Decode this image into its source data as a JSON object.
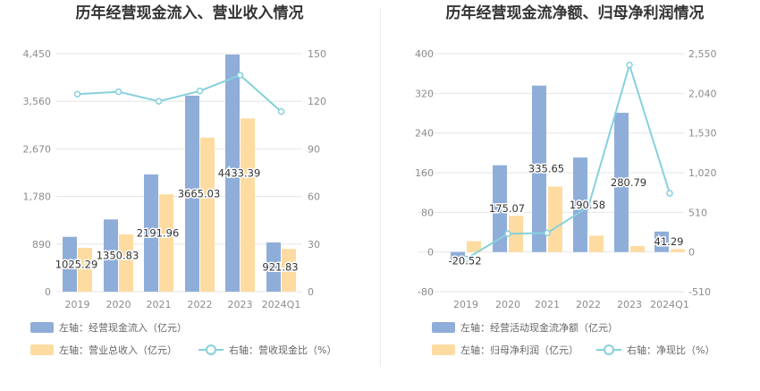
{
  "charts": [
    {
      "title": "历年经营现金流入、营业收入情况",
      "legend": {
        "bar1": "左轴：经营现金流入（亿元）",
        "bar2": "左轴：营业总收入（亿元）",
        "line": "右轴：营收现金比（%）"
      }
    },
    {
      "title": "历年经营现金流净额、归母净利润情况",
      "legend": {
        "bar1": "左轴：经营活动现金流净额（亿元）",
        "bar2": "左轴：归母净利润（亿元）",
        "line": "右轴：净现比（%）"
      }
    }
  ],
  "colors": {
    "bar1": "#8fadd9",
    "bar2": "#fedba1",
    "line": "#86d1dc",
    "grid": "#e6e6e6"
  },
  "chart_data": [
    {
      "type": "bar",
      "title": "历年经营现金流入、营业收入情况",
      "categories": [
        "2019",
        "2020",
        "2021",
        "2022",
        "2023",
        "2024Q1"
      ],
      "left_axis": {
        "ticks": [
          "0",
          "890",
          "1,780",
          "2,670",
          "3,560",
          "4,450"
        ],
        "ylim": [
          0,
          4450
        ]
      },
      "right_axis": {
        "ticks": [
          "0",
          "30",
          "60",
          "90",
          "120",
          "150"
        ],
        "ylim": [
          0,
          150
        ]
      },
      "series": [
        {
          "name": "左轴：经营现金流入（亿元）",
          "axis": "left",
          "values": [
            1025.29,
            1350.83,
            2191.96,
            3665.03,
            4433.39,
            921.83
          ],
          "labels": [
            "1025.29",
            "1350.83",
            "2191.96",
            "3665.03",
            "4433.39",
            "921.83"
          ]
        },
        {
          "name": "左轴：营业总收入（亿元）",
          "axis": "left",
          "values": [
            820,
            1070,
            1820,
            2880,
            3240,
            800
          ]
        },
        {
          "name": "右轴：营收现金比（%）",
          "axis": "right",
          "type": "line",
          "values": [
            124.5,
            126,
            120,
            126.5,
            136.5,
            113.5
          ]
        }
      ]
    },
    {
      "type": "bar",
      "title": "历年经营现金流净额、归母净利润情况",
      "categories": [
        "2019",
        "2020",
        "2021",
        "2022",
        "2023",
        "2024Q1"
      ],
      "left_axis": {
        "ticks": [
          "-80",
          "0",
          "80",
          "160",
          "240",
          "320",
          "400"
        ],
        "ylim": [
          -80,
          400
        ]
      },
      "right_axis": {
        "ticks": [
          "-510",
          "0",
          "510",
          "1,020",
          "1,530",
          "2,040",
          "2,550"
        ],
        "ylim": [
          -510,
          2550
        ]
      },
      "series": [
        {
          "name": "左轴：经营活动现金流净额（亿元）",
          "axis": "left",
          "values": [
            -20.52,
            175.07,
            335.65,
            190.58,
            280.79,
            41.29
          ],
          "labels": [
            "-20.52",
            "175.07",
            "335.65",
            "190.58",
            "280.79",
            "41.29"
          ]
        },
        {
          "name": "左轴：归母净利润（亿元）",
          "axis": "left",
          "values": [
            22,
            73,
            132,
            33,
            12,
            6
          ]
        },
        {
          "name": "右轴：净现比（%）",
          "axis": "right",
          "type": "line",
          "values": [
            -90,
            235,
            245,
            580,
            2405,
            755
          ]
        }
      ]
    }
  ]
}
